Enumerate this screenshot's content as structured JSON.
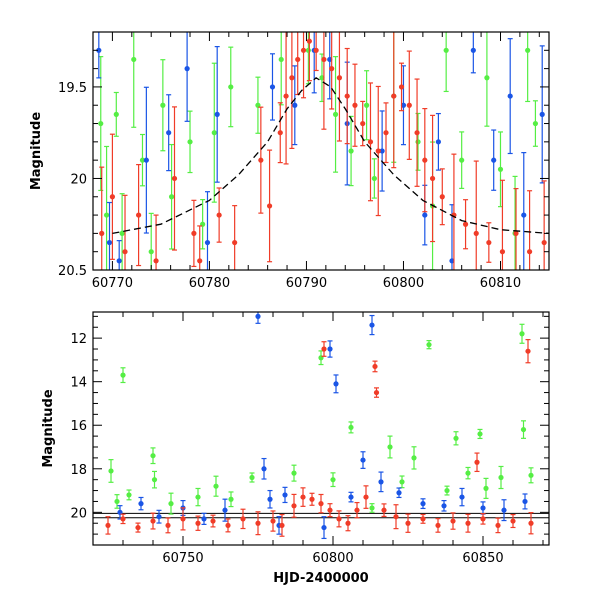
{
  "chart_data": [
    {
      "type": "scatter",
      "panel": "top",
      "xlabel": "",
      "ylabel": "Magnitude",
      "xlim": [
        60768,
        60815
      ],
      "ylim": [
        20.5,
        19.2
      ],
      "y_inverted": true,
      "x_ticks": [
        60770,
        60780,
        60790,
        60800,
        60810
      ],
      "x_tick_labels": [
        "60770",
        "60780",
        "60790",
        "60800",
        "60810"
      ],
      "y_ticks": [
        19.5,
        20,
        20.5
      ],
      "y_tick_labels": [
        "19.5",
        "20",
        "20.5"
      ],
      "grid": false,
      "series": [
        {
          "color": "#55ee44",
          "points": [
            {
              "x": 60768.8,
              "y": 19.7
            },
            {
              "x": 60769.4,
              "y": 20.2
            },
            {
              "x": 60770.4,
              "y": 19.65
            },
            {
              "x": 60771.0,
              "y": 20.3
            },
            {
              "x": 60772.2,
              "y": 19.35
            },
            {
              "x": 60773.1,
              "y": 19.9
            },
            {
              "x": 60774.0,
              "y": 20.4
            },
            {
              "x": 60775.2,
              "y": 19.6
            },
            {
              "x": 60776.1,
              "y": 20.1
            },
            {
              "x": 60778.0,
              "y": 19.8
            },
            {
              "x": 60779.3,
              "y": 20.25
            },
            {
              "x": 60780.5,
              "y": 19.75
            },
            {
              "x": 60782.2,
              "y": 19.5
            },
            {
              "x": 60785.0,
              "y": 19.6
            },
            {
              "x": 60787.4,
              "y": 19.35
            },
            {
              "x": 60790.2,
              "y": 19.3
            },
            {
              "x": 60791.6,
              "y": 19.45
            },
            {
              "x": 60793.0,
              "y": 19.65
            },
            {
              "x": 60794.6,
              "y": 19.85
            },
            {
              "x": 60796.2,
              "y": 19.6
            },
            {
              "x": 60797.0,
              "y": 20.0
            },
            {
              "x": 60799.0,
              "y": 19.55
            },
            {
              "x": 60801.5,
              "y": 19.8
            },
            {
              "x": 60803.0,
              "y": 20.15
            },
            {
              "x": 60804.4,
              "y": 19.3
            },
            {
              "x": 60806.0,
              "y": 19.9
            },
            {
              "x": 60808.6,
              "y": 19.45
            },
            {
              "x": 60810.0,
              "y": 19.95
            },
            {
              "x": 60811.5,
              "y": 20.3
            },
            {
              "x": 60812.8,
              "y": 19.3
            },
            {
              "x": 60813.6,
              "y": 19.7
            }
          ]
        },
        {
          "color": "#1a55e6",
          "points": [
            {
              "x": 60768.6,
              "y": 19.3
            },
            {
              "x": 60769.7,
              "y": 20.35
            },
            {
              "x": 60770.7,
              "y": 20.45
            },
            {
              "x": 60773.5,
              "y": 19.9
            },
            {
              "x": 60775.8,
              "y": 19.75
            },
            {
              "x": 60777.7,
              "y": 19.4
            },
            {
              "x": 60779.8,
              "y": 20.35
            },
            {
              "x": 60780.8,
              "y": 19.65
            },
            {
              "x": 60786.5,
              "y": 19.5
            },
            {
              "x": 60788.8,
              "y": 19.6
            },
            {
              "x": 60790.8,
              "y": 19.3
            },
            {
              "x": 60792.4,
              "y": 19.35
            },
            {
              "x": 60794.2,
              "y": 19.7
            },
            {
              "x": 60797.8,
              "y": 19.85
            },
            {
              "x": 60800.0,
              "y": 19.6
            },
            {
              "x": 60802.2,
              "y": 20.2
            },
            {
              "x": 60803.6,
              "y": 19.8
            },
            {
              "x": 60805.0,
              "y": 20.45
            },
            {
              "x": 60807.2,
              "y": 19.3
            },
            {
              "x": 60809.3,
              "y": 19.9
            },
            {
              "x": 60811.0,
              "y": 19.55
            },
            {
              "x": 60812.4,
              "y": 20.2
            },
            {
              "x": 60814.3,
              "y": 19.65
            }
          ]
        },
        {
          "color": "#f03c28",
          "points": [
            {
              "x": 60768.9,
              "y": 20.3
            },
            {
              "x": 60770.0,
              "y": 20.1
            },
            {
              "x": 60771.3,
              "y": 20.4
            },
            {
              "x": 60772.7,
              "y": 20.2
            },
            {
              "x": 60774.5,
              "y": 20.45
            },
            {
              "x": 60776.4,
              "y": 20.0
            },
            {
              "x": 60778.4,
              "y": 20.3
            },
            {
              "x": 60779.0,
              "y": 20.45
            },
            {
              "x": 60781.0,
              "y": 20.2
            },
            {
              "x": 60782.6,
              "y": 20.35
            },
            {
              "x": 60785.3,
              "y": 19.9
            },
            {
              "x": 60786.2,
              "y": 20.15
            },
            {
              "x": 60787.3,
              "y": 19.75
            },
            {
              "x": 60787.9,
              "y": 19.55
            },
            {
              "x": 60788.5,
              "y": 19.45
            },
            {
              "x": 60789.1,
              "y": 19.35
            },
            {
              "x": 60789.7,
              "y": 19.3
            },
            {
              "x": 60790.3,
              "y": 19.25
            },
            {
              "x": 60791.0,
              "y": 19.3
            },
            {
              "x": 60791.8,
              "y": 19.35
            },
            {
              "x": 60792.6,
              "y": 19.4
            },
            {
              "x": 60793.4,
              "y": 19.45
            },
            {
              "x": 60794.2,
              "y": 19.55
            },
            {
              "x": 60795.0,
              "y": 19.6
            },
            {
              "x": 60795.8,
              "y": 19.7
            },
            {
              "x": 60796.6,
              "y": 19.8
            },
            {
              "x": 60797.4,
              "y": 19.85
            },
            {
              "x": 60798.2,
              "y": 19.75
            },
            {
              "x": 60799.0,
              "y": 19.55
            },
            {
              "x": 60799.8,
              "y": 19.5
            },
            {
              "x": 60800.6,
              "y": 19.6
            },
            {
              "x": 60801.4,
              "y": 19.75
            },
            {
              "x": 60802.2,
              "y": 19.9
            },
            {
              "x": 60803.0,
              "y": 20.0
            },
            {
              "x": 60804.0,
              "y": 20.1
            },
            {
              "x": 60805.2,
              "y": 20.2
            },
            {
              "x": 60806.4,
              "y": 20.25
            },
            {
              "x": 60807.5,
              "y": 20.3
            },
            {
              "x": 60808.8,
              "y": 20.35
            },
            {
              "x": 60810.2,
              "y": 20.4
            },
            {
              "x": 60811.6,
              "y": 20.3
            },
            {
              "x": 60813.0,
              "y": 20.4
            },
            {
              "x": 60814.5,
              "y": 20.35
            }
          ]
        }
      ],
      "model_curve": {
        "color": "#000000",
        "points": [
          {
            "x": 60770,
            "y": 20.3
          },
          {
            "x": 60775,
            "y": 20.25
          },
          {
            "x": 60780,
            "y": 20.12
          },
          {
            "x": 60783,
            "y": 19.98
          },
          {
            "x": 60786,
            "y": 19.8
          },
          {
            "x": 60788,
            "y": 19.62
          },
          {
            "x": 60789.5,
            "y": 19.52
          },
          {
            "x": 60791,
            "y": 19.45
          },
          {
            "x": 60792.5,
            "y": 19.5
          },
          {
            "x": 60794,
            "y": 19.62
          },
          {
            "x": 60796,
            "y": 19.8
          },
          {
            "x": 60799,
            "y": 19.98
          },
          {
            "x": 60802,
            "y": 20.12
          },
          {
            "x": 60806,
            "y": 20.23
          },
          {
            "x": 60810,
            "y": 20.28
          },
          {
            "x": 60815,
            "y": 20.3
          }
        ]
      }
    },
    {
      "type": "scatter",
      "panel": "bottom",
      "xlabel": "HJD-2400000",
      "ylabel": "Magnitude",
      "xlim": [
        60720,
        60872
      ],
      "ylim": [
        21.5,
        10.8
      ],
      "y_inverted": true,
      "x_ticks": [
        60750,
        60800,
        60850
      ],
      "x_tick_labels": [
        "60750",
        "60800",
        "60850"
      ],
      "y_ticks": [
        12,
        14,
        16,
        18,
        20
      ],
      "y_tick_labels": [
        "12",
        "14",
        "16",
        "18",
        "20"
      ],
      "grid": false,
      "reference_lines": [
        20.05,
        20.25
      ],
      "series": [
        {
          "color": "#55ee44",
          "points": [
            {
              "x": 60726,
              "y": 18.1
            },
            {
              "x": 60728,
              "y": 19.5
            },
            {
              "x": 60730,
              "y": 13.7
            },
            {
              "x": 60732,
              "y": 19.2
            },
            {
              "x": 60740,
              "y": 17.4
            },
            {
              "x": 60740.5,
              "y": 18.5
            },
            {
              "x": 60746,
              "y": 19.6
            },
            {
              "x": 60755,
              "y": 19.3
            },
            {
              "x": 60761,
              "y": 18.8
            },
            {
              "x": 60766,
              "y": 19.4
            },
            {
              "x": 60773,
              "y": 18.4
            },
            {
              "x": 60787,
              "y": 18.2
            },
            {
              "x": 60796,
              "y": 12.9
            },
            {
              "x": 60800,
              "y": 18.5
            },
            {
              "x": 60806,
              "y": 16.1
            },
            {
              "x": 60813,
              "y": 19.8
            },
            {
              "x": 60819,
              "y": 17.0
            },
            {
              "x": 60823,
              "y": 18.6
            },
            {
              "x": 60827,
              "y": 17.5
            },
            {
              "x": 60832,
              "y": 12.3
            },
            {
              "x": 60838,
              "y": 19.0
            },
            {
              "x": 60841,
              "y": 16.6
            },
            {
              "x": 60845,
              "y": 18.2
            },
            {
              "x": 60849,
              "y": 16.4
            },
            {
              "x": 60851,
              "y": 18.9
            },
            {
              "x": 60856,
              "y": 18.4
            },
            {
              "x": 60863,
              "y": 11.8
            },
            {
              "x": 60863.5,
              "y": 16.2
            },
            {
              "x": 60866,
              "y": 18.3
            }
          ]
        },
        {
          "color": "#1a55e6",
          "points": [
            {
              "x": 60729,
              "y": 20.0
            },
            {
              "x": 60736,
              "y": 19.6
            },
            {
              "x": 60742,
              "y": 20.2
            },
            {
              "x": 60750,
              "y": 19.8
            },
            {
              "x": 60757,
              "y": 20.3
            },
            {
              "x": 60764,
              "y": 19.9
            },
            {
              "x": 60775,
              "y": 11.0
            },
            {
              "x": 60777,
              "y": 18.0
            },
            {
              "x": 60779,
              "y": 19.4
            },
            {
              "x": 60782,
              "y": 20.6
            },
            {
              "x": 60784,
              "y": 19.2
            },
            {
              "x": 60797,
              "y": 20.7
            },
            {
              "x": 60799,
              "y": 12.5
            },
            {
              "x": 60801,
              "y": 14.1
            },
            {
              "x": 60806,
              "y": 19.3
            },
            {
              "x": 60810,
              "y": 17.6
            },
            {
              "x": 60813,
              "y": 11.4
            },
            {
              "x": 60816,
              "y": 18.6
            },
            {
              "x": 60822,
              "y": 19.1
            },
            {
              "x": 60830,
              "y": 19.6
            },
            {
              "x": 60837,
              "y": 19.7
            },
            {
              "x": 60843,
              "y": 19.3
            },
            {
              "x": 60850,
              "y": 19.8
            },
            {
              "x": 60857,
              "y": 19.9
            },
            {
              "x": 60864,
              "y": 19.5
            }
          ]
        },
        {
          "color": "#f03c28",
          "points": [
            {
              "x": 60725,
              "y": 20.6
            },
            {
              "x": 60730,
              "y": 20.3
            },
            {
              "x": 60735,
              "y": 20.7
            },
            {
              "x": 60740,
              "y": 20.4
            },
            {
              "x": 60745,
              "y": 20.6
            },
            {
              "x": 60750,
              "y": 20.3
            },
            {
              "x": 60755,
              "y": 20.5
            },
            {
              "x": 60760,
              "y": 20.4
            },
            {
              "x": 60765,
              "y": 20.6
            },
            {
              "x": 60770,
              "y": 20.3
            },
            {
              "x": 60775,
              "y": 20.5
            },
            {
              "x": 60780,
              "y": 20.4
            },
            {
              "x": 60783,
              "y": 20.6
            },
            {
              "x": 60787,
              "y": 19.7
            },
            {
              "x": 60790,
              "y": 19.3
            },
            {
              "x": 60793,
              "y": 19.4
            },
            {
              "x": 60796,
              "y": 19.6
            },
            {
              "x": 60797,
              "y": 12.5
            },
            {
              "x": 60799,
              "y": 19.9
            },
            {
              "x": 60802,
              "y": 20.3
            },
            {
              "x": 60805,
              "y": 20.5
            },
            {
              "x": 60808,
              "y": 19.9
            },
            {
              "x": 60811,
              "y": 19.3
            },
            {
              "x": 60814,
              "y": 13.3
            },
            {
              "x": 60814.5,
              "y": 14.5
            },
            {
              "x": 60817,
              "y": 19.9
            },
            {
              "x": 60821,
              "y": 20.2
            },
            {
              "x": 60825,
              "y": 20.5
            },
            {
              "x": 60830,
              "y": 20.3
            },
            {
              "x": 60835,
              "y": 20.6
            },
            {
              "x": 60840,
              "y": 20.4
            },
            {
              "x": 60845,
              "y": 20.5
            },
            {
              "x": 60848,
              "y": 17.7
            },
            {
              "x": 60850,
              "y": 20.3
            },
            {
              "x": 60855,
              "y": 20.6
            },
            {
              "x": 60860,
              "y": 20.4
            },
            {
              "x": 60865,
              "y": 12.6
            },
            {
              "x": 60866,
              "y": 20.5
            }
          ]
        }
      ]
    }
  ]
}
